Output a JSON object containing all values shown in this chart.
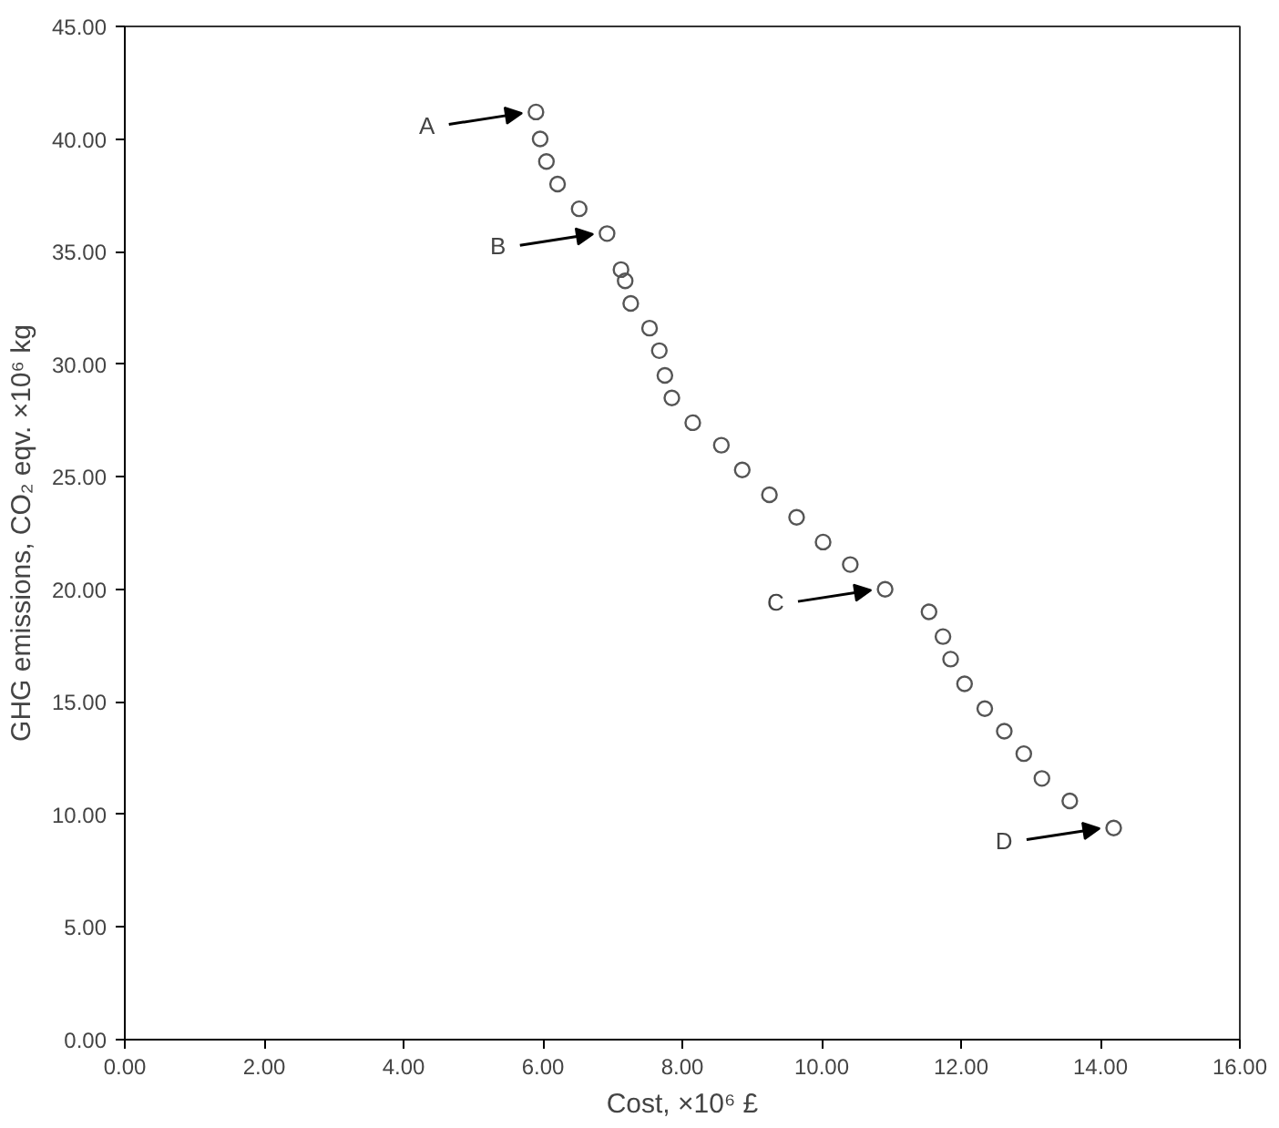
{
  "chart_data": {
    "type": "scatter",
    "xlabel": "Cost, ×10⁶ £",
    "ylabel": "GHG emissions, CO₂ eqv. ×10⁶ kg",
    "x": [
      5.9,
      5.96,
      6.05,
      6.21,
      6.52,
      6.92,
      7.12,
      7.18,
      7.26,
      7.53,
      7.67,
      7.75,
      7.85,
      8.15,
      8.56,
      8.86,
      9.25,
      9.64,
      10.02,
      10.41,
      10.91,
      11.54,
      11.74,
      11.85,
      12.05,
      12.34,
      12.62,
      12.9,
      13.16,
      13.56,
      14.19
    ],
    "series": [
      {
        "color": "#555555",
        "values": [
          41.2,
          40.0,
          39.0,
          38.0,
          36.9,
          35.8,
          34.2,
          33.7,
          32.7,
          31.6,
          30.6,
          29.5,
          28.5,
          27.4,
          26.4,
          25.3,
          24.2,
          23.2,
          22.1,
          21.1,
          20.0,
          19.0,
          17.9,
          16.9,
          15.8,
          14.7,
          13.7,
          12.7,
          11.6,
          10.6,
          9.4
        ]
      }
    ],
    "marker": "circle",
    "grid": false,
    "xlim": [
      0,
      16
    ],
    "ylim": [
      0,
      45
    ],
    "xticks": [
      {
        "value": 0,
        "label": "0.00"
      },
      {
        "value": 2,
        "label": "2.00"
      },
      {
        "value": 4,
        "label": "4.00"
      },
      {
        "value": 6,
        "label": "6.00"
      },
      {
        "value": 8,
        "label": "8.00"
      },
      {
        "value": 10,
        "label": "10.00"
      },
      {
        "value": 12,
        "label": "12.00"
      },
      {
        "value": 14,
        "label": "14.00"
      },
      {
        "value": 16,
        "label": "16.00"
      }
    ],
    "yticks": [
      {
        "value": 0,
        "label": "0.00"
      },
      {
        "value": 5,
        "label": "5.00"
      },
      {
        "value": 10,
        "label": "10.00"
      },
      {
        "value": 15,
        "label": "15.00"
      },
      {
        "value": 20,
        "label": "20.00"
      },
      {
        "value": 25,
        "label": "25.00"
      },
      {
        "value": 30,
        "label": "30.00"
      },
      {
        "value": 35,
        "label": "35.00"
      },
      {
        "value": 40,
        "label": "40.00"
      },
      {
        "value": 45,
        "label": "45.00"
      }
    ],
    "annotations": [
      {
        "text": "A",
        "x": 5.9,
        "y": 41.2
      },
      {
        "text": "B",
        "x": 6.92,
        "y": 35.83
      },
      {
        "text": "C",
        "x": 10.91,
        "y": 20.01
      },
      {
        "text": "D",
        "x": 14.19,
        "y": 9.43
      }
    ]
  }
}
